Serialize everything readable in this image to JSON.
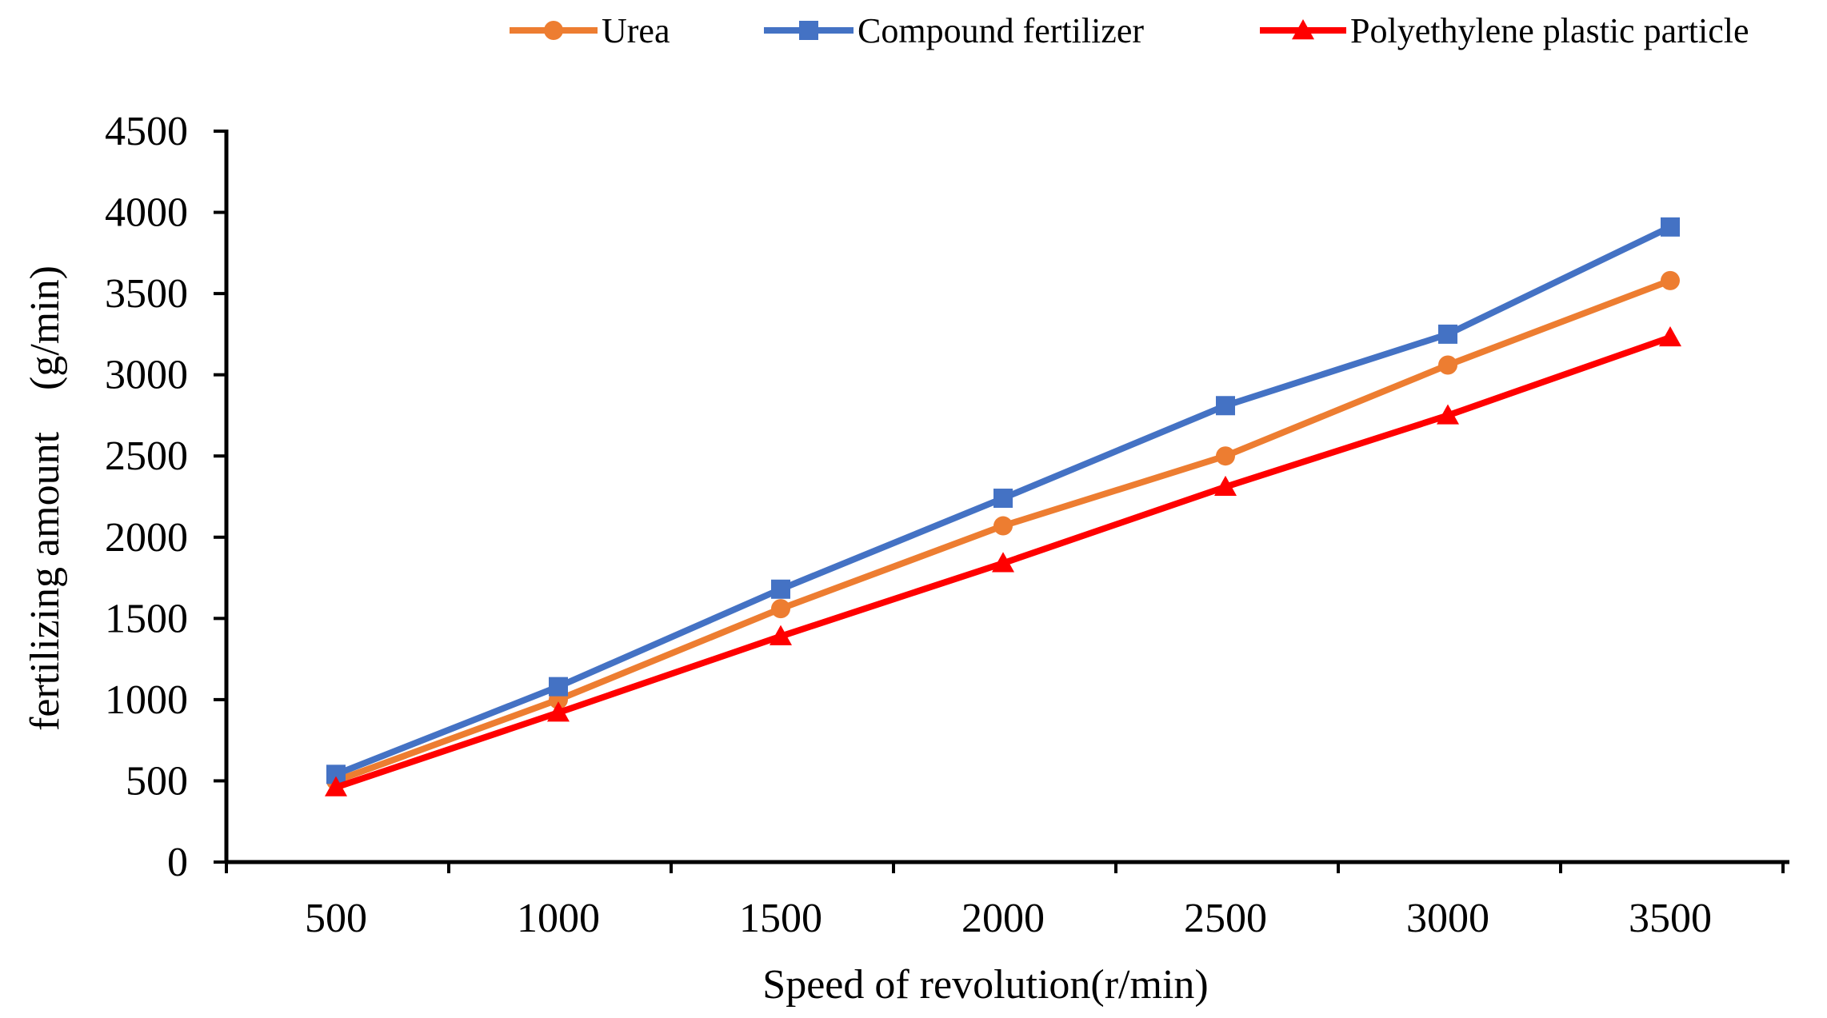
{
  "chart_data": {
    "type": "line",
    "title": "",
    "xlabel": "Speed of revolution(r/min)",
    "ylabel": "fertilizing amount　(g/min)",
    "x": [
      500,
      1000,
      1500,
      2000,
      2500,
      3000,
      3500
    ],
    "x_tick_labels": [
      "500",
      "1000",
      "1500",
      "2000",
      "2500",
      "3000",
      "3500"
    ],
    "y_tick_labels": [
      "0",
      "500",
      "1000",
      "1500",
      "2000",
      "2500",
      "3000",
      "3500",
      "4000",
      "4500"
    ],
    "ylim": [
      0,
      4500
    ],
    "y_ticks": [
      0,
      500,
      1000,
      1500,
      2000,
      2500,
      3000,
      3500,
      4000,
      4500
    ],
    "grid": false,
    "legend_position": "top",
    "series": [
      {
        "name": "Urea",
        "color": "#ED7D31",
        "marker": "circle",
        "values": [
          500,
          1000,
          1560,
          2070,
          2500,
          3060,
          3580
        ]
      },
      {
        "name": "Compound fertilizer",
        "color": "#4472C4",
        "marker": "square",
        "values": [
          540,
          1080,
          1680,
          2240,
          2810,
          3250,
          3910
        ]
      },
      {
        "name": "Polyethylene plastic particle",
        "color": "#FF0000",
        "marker": "triangle",
        "values": [
          460,
          920,
          1390,
          1840,
          2310,
          2750,
          3230
        ]
      }
    ]
  }
}
